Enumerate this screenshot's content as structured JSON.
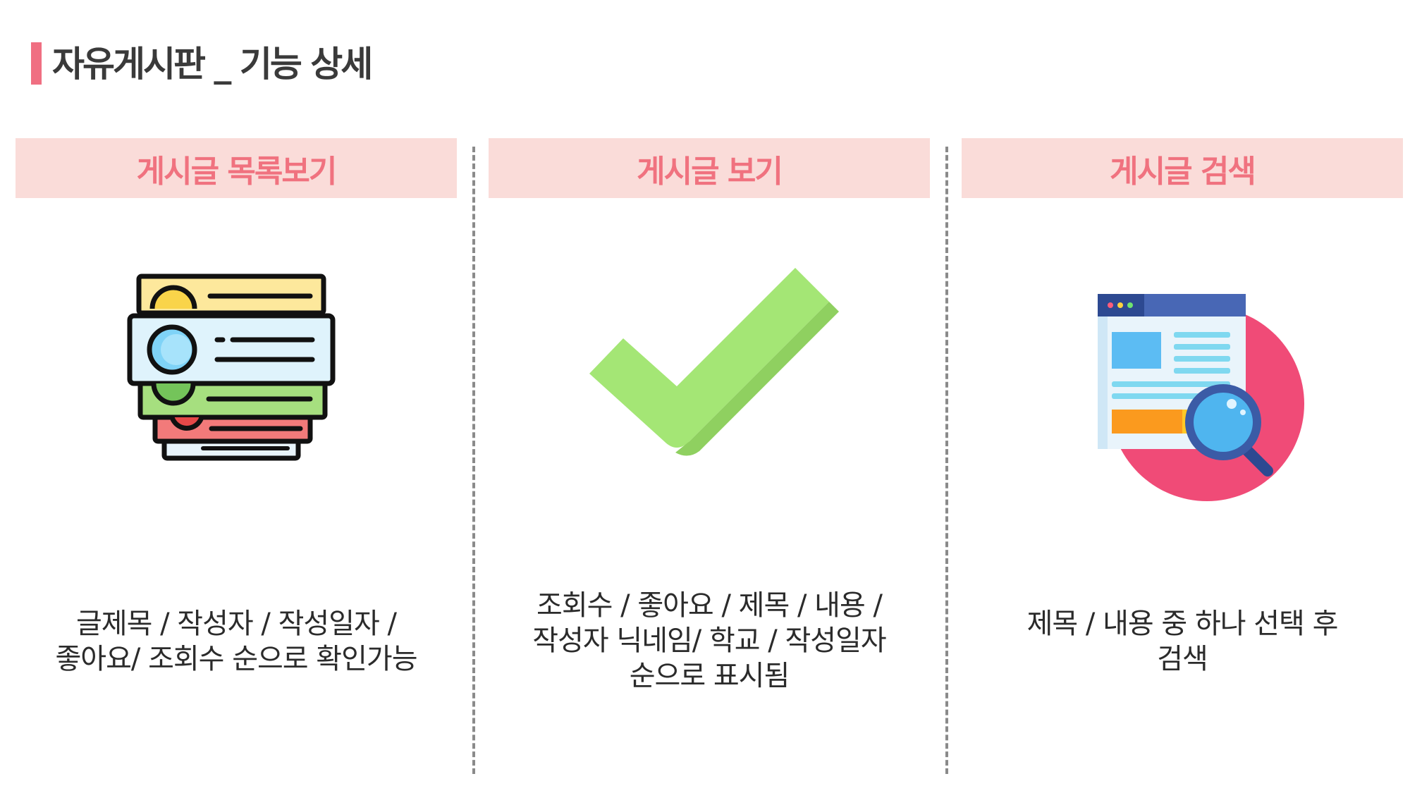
{
  "page_title": "자유게시판 _ 기능 상세",
  "colors": {
    "accent": "#f06f82",
    "header_bg": "#fadcd9",
    "header_text": "#f0727f",
    "divider": "#8a8a8a"
  },
  "columns": [
    {
      "header": "게시글 목록보기",
      "icon": "stacked-list-icon",
      "desc_lines": [
        "글제목 / 작성자 / 작성일자 /",
        "좋아요/ 조회수 순으로 확인가능"
      ]
    },
    {
      "header": "게시글 보기",
      "icon": "checkmark-icon",
      "desc_lines": [
        "조회수 / 좋아요 / 제목 / 내용 /",
        "작성자 닉네임/ 학교 / 작성일자",
        "순으로 표시됨"
      ]
    },
    {
      "header": "게시글 검색",
      "icon": "web-search-icon",
      "desc_lines": [
        "제목 / 내용 중 하나 선택 후",
        "검색"
      ]
    }
  ]
}
